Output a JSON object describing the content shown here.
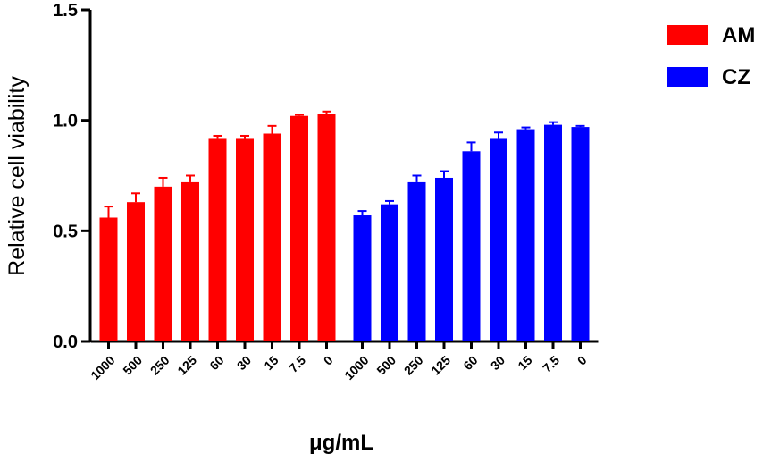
{
  "chart_data": {
    "type": "bar",
    "ylabel": "Relative cell viability",
    "xlabel": "μg/mL",
    "ylim": [
      0,
      1.5
    ],
    "yticks": [
      "0.0",
      "0.5",
      "1.0",
      "1.5"
    ],
    "legend_position": "top-right",
    "categories": [
      "1000",
      "500",
      "250",
      "125",
      "60",
      "30",
      "15",
      "7.5",
      "0"
    ],
    "series": [
      {
        "name": "AM",
        "color": "#ff0000",
        "values": [
          0.56,
          0.63,
          0.7,
          0.72,
          0.92,
          0.92,
          0.94,
          1.02,
          1.03
        ],
        "errors": [
          0.05,
          0.04,
          0.04,
          0.03,
          0.01,
          0.01,
          0.035,
          0.005,
          0.01
        ]
      },
      {
        "name": "CZ",
        "color": "#0000ff",
        "values": [
          0.57,
          0.62,
          0.72,
          0.74,
          0.86,
          0.92,
          0.96,
          0.98,
          0.97
        ],
        "errors": [
          0.02,
          0.015,
          0.03,
          0.03,
          0.04,
          0.025,
          0.008,
          0.012,
          0.005
        ]
      }
    ]
  }
}
